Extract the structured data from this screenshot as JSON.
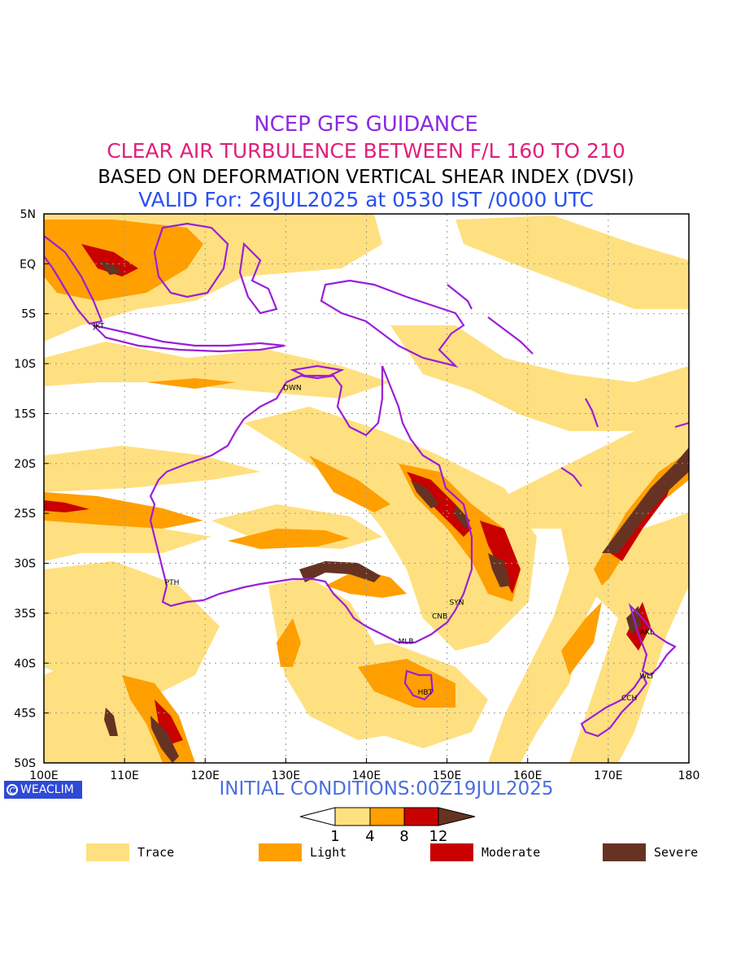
{
  "titles": {
    "line1": "NCEP GFS GUIDANCE",
    "line2": "CLEAR AIR TURBULENCE BETWEEN F/L 160 TO 210",
    "line3": "BASED ON DEFORMATION VERTICAL SHEAR INDEX (DVSI)",
    "line4": "VALID For: 26JUL2025 at 0530 IST /0000 UTC"
  },
  "map": {
    "lon_range": [
      100,
      180
    ],
    "lat_range": [
      -50,
      5
    ],
    "lon_ticks": [
      {
        "value": 100,
        "label": "100E"
      },
      {
        "value": 110,
        "label": "110E"
      },
      {
        "value": 120,
        "label": "120E"
      },
      {
        "value": 130,
        "label": "130E"
      },
      {
        "value": 140,
        "label": "140E"
      },
      {
        "value": 150,
        "label": "150E"
      },
      {
        "value": 160,
        "label": "160E"
      },
      {
        "value": 170,
        "label": "170E"
      },
      {
        "value": 180,
        "label": "180"
      }
    ],
    "lat_ticks": [
      {
        "value": 5,
        "label": "5N"
      },
      {
        "value": 0,
        "label": "EQ"
      },
      {
        "value": -5,
        "label": "5S"
      },
      {
        "value": -10,
        "label": "10S"
      },
      {
        "value": -15,
        "label": "15S"
      },
      {
        "value": -20,
        "label": "20S"
      },
      {
        "value": -25,
        "label": "25S"
      },
      {
        "value": -30,
        "label": "30S"
      },
      {
        "value": -35,
        "label": "35S"
      },
      {
        "value": -40,
        "label": "40S"
      },
      {
        "value": -45,
        "label": "45S"
      },
      {
        "value": -50,
        "label": "50S"
      }
    ],
    "stations": [
      {
        "code": "JKT",
        "lon": 106.8,
        "lat": -6.2
      },
      {
        "code": "DWN",
        "lon": 130.8,
        "lat": -12.4
      },
      {
        "code": "PTH",
        "lon": 115.9,
        "lat": -31.9
      },
      {
        "code": "SYN",
        "lon": 151.2,
        "lat": -33.9
      },
      {
        "code": "CNB",
        "lon": 149.1,
        "lat": -35.3
      },
      {
        "code": "MLB",
        "lon": 144.9,
        "lat": -37.8
      },
      {
        "code": "HBT",
        "lon": 147.3,
        "lat": -42.9
      },
      {
        "code": "AKL",
        "lon": 174.8,
        "lat": -36.9
      },
      {
        "code": "WLT",
        "lon": 174.8,
        "lat": -41.3
      },
      {
        "code": "CCH",
        "lon": 172.6,
        "lat": -43.5
      }
    ],
    "colors": {
      "coastline": "#9b1fd6",
      "grid": "#9a9a9a",
      "trace": "#ffe080",
      "light": "#ff9f00",
      "moderate": "#c80000",
      "severe": "#663322"
    }
  },
  "footer": {
    "logo_text": "WEACLIM",
    "initial_conditions": "INITIAL CONDITIONS:00Z19JUL2025"
  },
  "colorbar": {
    "ticks": [
      "1",
      "4",
      "8",
      "12"
    ],
    "colors": [
      "#ffe080",
      "#ff9f00",
      "#c80000",
      "#663322"
    ]
  },
  "legend": [
    {
      "label": "Trace",
      "color": "#ffe080"
    },
    {
      "label": "Light",
      "color": "#ff9f00"
    },
    {
      "label": "Moderate",
      "color": "#c80000"
    },
    {
      "label": "Severe",
      "color": "#663322"
    }
  ]
}
